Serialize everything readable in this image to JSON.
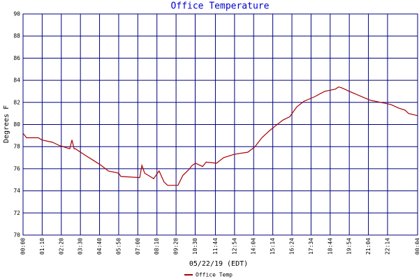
{
  "chart_data": {
    "type": "line",
    "title": "Office Temperature",
    "xlabel": "05/22/19 (EDT)",
    "ylabel": "Degrees F",
    "x": [
      0,
      13,
      56,
      69,
      107,
      133,
      171,
      179,
      187,
      192,
      210,
      235,
      261,
      286,
      312,
      350,
      358,
      427,
      435,
      445,
      465,
      478,
      498,
      516,
      529,
      567,
      585,
      606,
      619,
      631,
      657,
      670,
      708,
      734,
      772,
      823,
      849,
      874,
      900,
      925,
      951,
      976,
      1002,
      1028,
      1066,
      1104,
      1143,
      1155,
      1168,
      1194,
      1232,
      1270,
      1309,
      1347,
      1373,
      1398,
      1411,
      1444
    ],
    "series": [
      {
        "name": "Office Temp",
        "color": "#aa0000",
        "values": [
          79.2,
          78.8,
          78.8,
          78.6,
          78.4,
          78.1,
          77.8,
          78.6,
          77.8,
          77.8,
          77.5,
          77.1,
          76.7,
          76.3,
          75.8,
          75.6,
          75.3,
          75.2,
          76.3,
          75.6,
          75.3,
          75.1,
          75.8,
          74.8,
          74.5,
          74.5,
          75.4,
          75.9,
          76.3,
          76.5,
          76.2,
          76.6,
          76.5,
          77.0,
          77.3,
          77.5,
          78.0,
          78.8,
          79.4,
          79.9,
          80.4,
          80.7,
          81.6,
          82.1,
          82.5,
          83.0,
          83.2,
          83.4,
          83.3,
          83.0,
          82.6,
          82.2,
          82.0,
          81.8,
          81.5,
          81.3,
          81.0,
          80.8
        ]
      }
    ],
    "xlim": [
      0,
      1444
    ],
    "xticks": [
      {
        "value": 0,
        "label": "00:00"
      },
      {
        "value": 70,
        "label": "01:10"
      },
      {
        "value": 140,
        "label": "02:20"
      },
      {
        "value": 210,
        "label": "03:30"
      },
      {
        "value": 280,
        "label": "04:40"
      },
      {
        "value": 350,
        "label": "05:50"
      },
      {
        "value": 420,
        "label": "07:00"
      },
      {
        "value": 490,
        "label": "08:10"
      },
      {
        "value": 560,
        "label": "09:20"
      },
      {
        "value": 630,
        "label": "10:30"
      },
      {
        "value": 704,
        "label": "11:44"
      },
      {
        "value": 774,
        "label": "12:54"
      },
      {
        "value": 844,
        "label": "14:04"
      },
      {
        "value": 914,
        "label": "15:14"
      },
      {
        "value": 984,
        "label": "16:24"
      },
      {
        "value": 1054,
        "label": "17:34"
      },
      {
        "value": 1124,
        "label": "18:44"
      },
      {
        "value": 1194,
        "label": "19:54"
      },
      {
        "value": 1264,
        "label": "21:04"
      },
      {
        "value": 1334,
        "label": "22:14"
      },
      {
        "value": 1444,
        "label": "00:04"
      }
    ],
    "ylim": [
      70,
      90
    ],
    "yticks": [
      70,
      72,
      74,
      76,
      78,
      80,
      82,
      84,
      86,
      88,
      90
    ],
    "grid": true
  }
}
